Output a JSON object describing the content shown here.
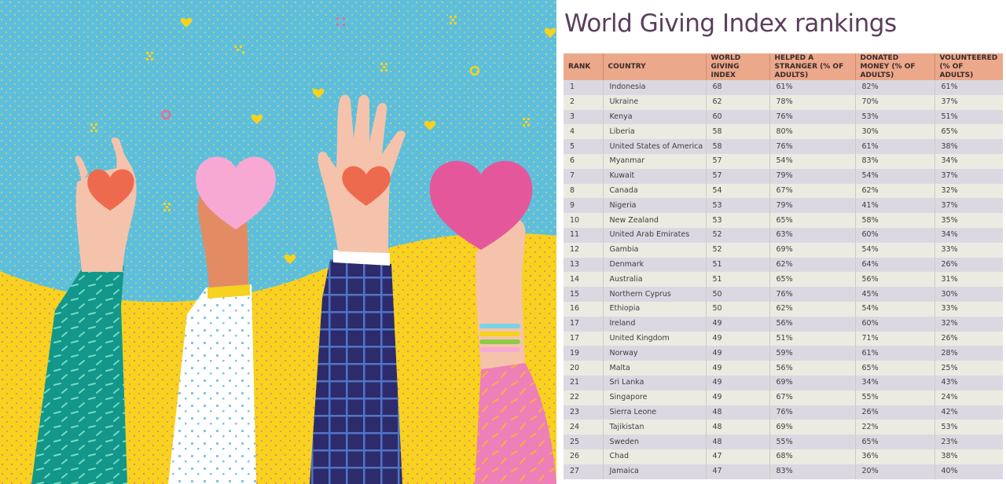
{
  "title": "World Giving Index rankings",
  "colors": {
    "sky": "#5ebfdc",
    "ground": "#f7d21e",
    "header_bg": "#eba88a",
    "row_odd": "#dcd8e2",
    "row_even": "#ecebe2",
    "title": "#5a3e5b"
  },
  "chart_data": {
    "type": "table",
    "columns": [
      "RANK",
      "COUNTRY",
      "WORLD GIVING INDEX",
      "HELPED A STRANGER (% OF ADULTS)",
      "DONATED MONEY (% OF ADULTS)",
      "VOLUNTEERED (% OF ADULTS)"
    ],
    "rows": [
      [
        "1",
        "Indonesia",
        "68",
        "61%",
        "82%",
        "61%"
      ],
      [
        "2",
        "Ukraine",
        "62",
        "78%",
        "70%",
        "37%"
      ],
      [
        "3",
        "Kenya",
        "60",
        "76%",
        "53%",
        "51%"
      ],
      [
        "4",
        "Liberia",
        "58",
        "80%",
        "30%",
        "65%"
      ],
      [
        "5",
        "United States of America",
        "58",
        "76%",
        "61%",
        "38%"
      ],
      [
        "6",
        "Myanmar",
        "57",
        "54%",
        "83%",
        "34%"
      ],
      [
        "7",
        "Kuwait",
        "57",
        "79%",
        "54%",
        "37%"
      ],
      [
        "8",
        "Canada",
        "54",
        "67%",
        "62%",
        "32%"
      ],
      [
        "9",
        "Nigeria",
        "53",
        "79%",
        "41%",
        "37%"
      ],
      [
        "10",
        "New Zealand",
        "53",
        "65%",
        "58%",
        "35%"
      ],
      [
        "11",
        "United Arab Emirates",
        "52",
        "63%",
        "60%",
        "34%"
      ],
      [
        "12",
        "Gambia",
        "52",
        "69%",
        "54%",
        "33%"
      ],
      [
        "13",
        "Denmark",
        "51",
        "62%",
        "64%",
        "26%"
      ],
      [
        "14",
        "Australia",
        "51",
        "65%",
        "56%",
        "31%"
      ],
      [
        "15",
        "Northern Cyprus",
        "50",
        "76%",
        "45%",
        "30%"
      ],
      [
        "16",
        "Ethiopia",
        "50",
        "62%",
        "54%",
        "33%"
      ],
      [
        "17",
        "Ireland",
        "49",
        "56%",
        "60%",
        "32%"
      ],
      [
        "17",
        "United Kingdom",
        "49",
        "51%",
        "71%",
        "26%"
      ],
      [
        "19",
        "Norway",
        "49",
        "59%",
        "61%",
        "28%"
      ],
      [
        "20",
        "Malta",
        "49",
        "56%",
        "65%",
        "25%"
      ],
      [
        "21",
        "Sri Lanka",
        "49",
        "69%",
        "34%",
        "43%"
      ],
      [
        "22",
        "Singapore",
        "49",
        "67%",
        "55%",
        "24%"
      ],
      [
        "23",
        "Sierra Leone",
        "48",
        "76%",
        "26%",
        "42%"
      ],
      [
        "24",
        "Tajikistan",
        "48",
        "69%",
        "22%",
        "53%"
      ],
      [
        "25",
        "Sweden",
        "48",
        "55%",
        "65%",
        "23%"
      ],
      [
        "26",
        "Chad",
        "47",
        "68%",
        "36%",
        "38%"
      ],
      [
        "27",
        "Jamaica",
        "47",
        "83%",
        "20%",
        "40%"
      ]
    ]
  }
}
